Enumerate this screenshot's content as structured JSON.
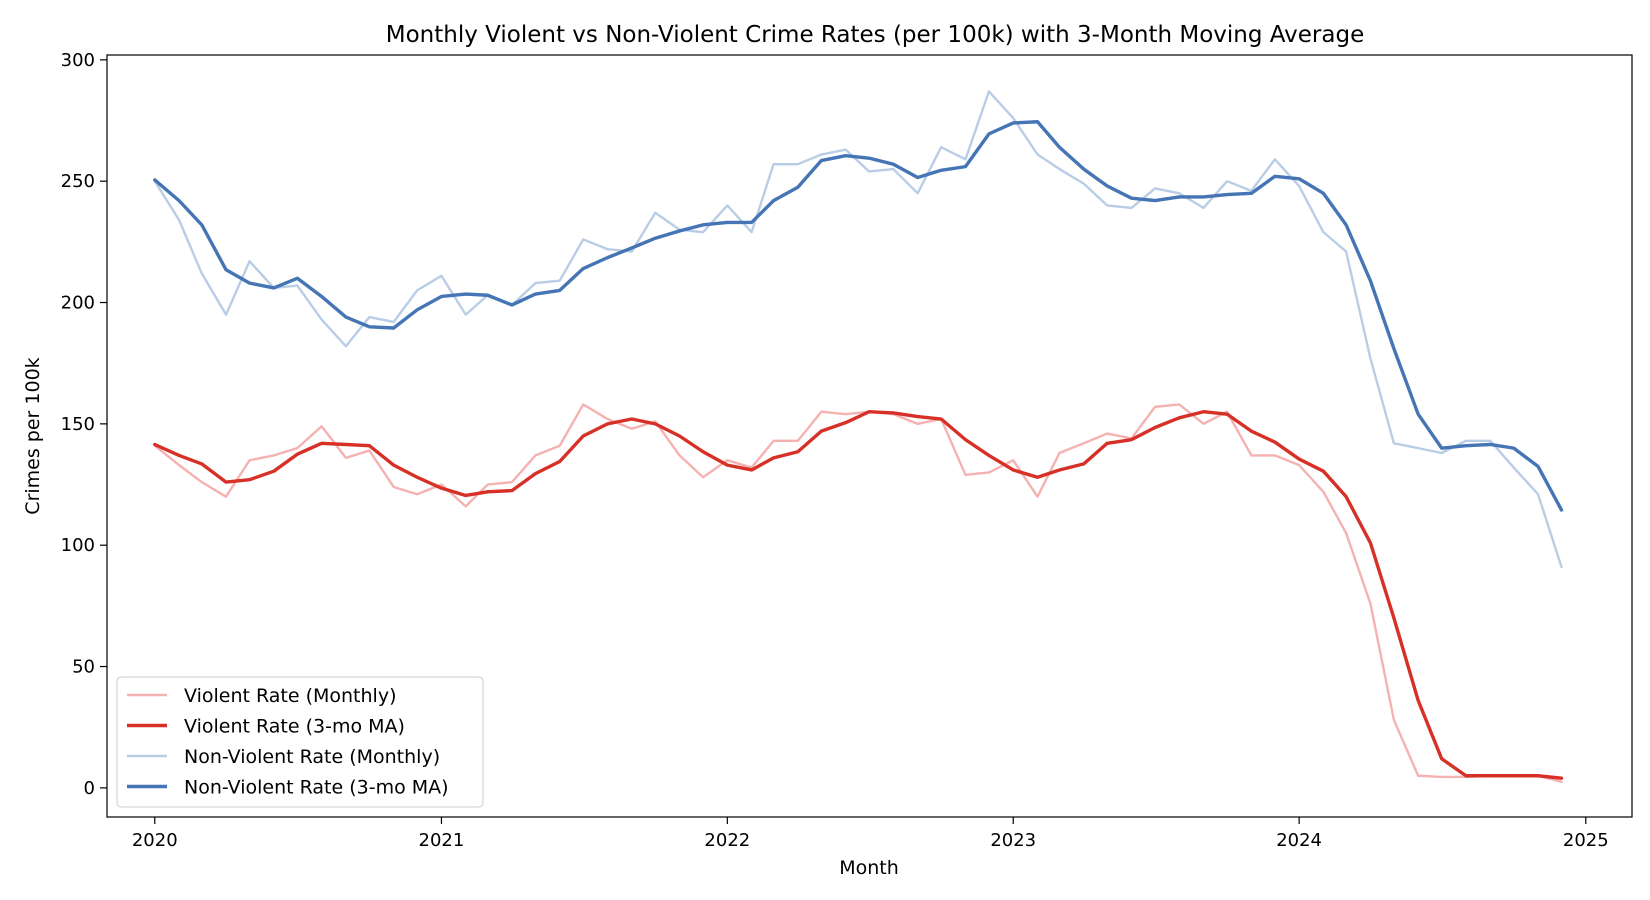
{
  "chart_data": {
    "type": "line",
    "title": "Monthly Violent vs Non-Violent Crime Rates (per 100k) with 3-Month Moving Average",
    "xlabel": "Month",
    "ylabel": "Crimes per 100k",
    "x": [
      "2020-01",
      "2020-02",
      "2020-03",
      "2020-04",
      "2020-05",
      "2020-06",
      "2020-07",
      "2020-08",
      "2020-09",
      "2020-10",
      "2020-11",
      "2020-12",
      "2021-01",
      "2021-02",
      "2021-03",
      "2021-04",
      "2021-05",
      "2021-06",
      "2021-07",
      "2021-08",
      "2021-09",
      "2021-10",
      "2021-11",
      "2021-12",
      "2022-01",
      "2022-02",
      "2022-03",
      "2022-04",
      "2022-05",
      "2022-06",
      "2022-07",
      "2022-08",
      "2022-09",
      "2022-10",
      "2022-11",
      "2022-12",
      "2023-01",
      "2023-02",
      "2023-03",
      "2023-04",
      "2023-05",
      "2023-06",
      "2023-07",
      "2023-08",
      "2023-09",
      "2023-10",
      "2023-11",
      "2023-12",
      "2024-01",
      "2024-02",
      "2024-03",
      "2024-04",
      "2024-05",
      "2024-06",
      "2024-07",
      "2024-08",
      "2024-09",
      "2024-10",
      "2024-11",
      "2024-12"
    ],
    "xlim": [
      "2019-11-01",
      "2025-03-01"
    ],
    "ylim": [
      -12,
      302
    ],
    "x_ticks": [
      "2020",
      "2021",
      "2022",
      "2023",
      "2024",
      "2025"
    ],
    "x_tick_dates": [
      "2020-01-01",
      "2021-01-01",
      "2022-01-01",
      "2023-01-01",
      "2024-01-01",
      "2025-01-01"
    ],
    "y_ticks": [
      0,
      50,
      100,
      150,
      200,
      250,
      300
    ],
    "grid": false,
    "legend_position": "lower-left",
    "series": [
      {
        "name": "Violent Rate (Monthly)",
        "color": "#f4b2b0",
        "width": 2.4,
        "values": [
          141,
          133,
          126,
          120,
          135,
          137,
          140,
          149,
          136,
          139,
          124,
          121,
          125,
          116,
          125,
          126,
          137,
          141,
          158,
          152,
          148,
          151,
          137,
          128,
          135,
          132,
          143,
          143,
          155,
          154,
          155,
          154,
          150,
          152,
          129,
          130,
          135,
          120,
          138,
          142,
          146,
          144,
          157,
          158,
          150,
          155,
          137,
          137,
          133,
          122,
          105,
          76,
          28,
          5,
          4.5,
          4.5,
          5,
          5,
          5,
          2.5
        ]
      },
      {
        "name": "Violent Rate (3-mo MA)",
        "color": "#d73027",
        "width": 3.4,
        "values": [
          141.5,
          137,
          133.5,
          126,
          127,
          130.5,
          137.5,
          142,
          141.5,
          141,
          133,
          128,
          123.5,
          120.5,
          122,
          122.5,
          129.5,
          134.5,
          145,
          150,
          152,
          150,
          145,
          138.5,
          133,
          131,
          136,
          138.5,
          147,
          150.5,
          155,
          154.5,
          153,
          152,
          143.5,
          137,
          131,
          128,
          131,
          133.5,
          142,
          143.5,
          148.5,
          152.5,
          155,
          154,
          147,
          142.5,
          135.5,
          130.5,
          120,
          101,
          70,
          36,
          12,
          5,
          5,
          5,
          5,
          4
        ]
      },
      {
        "name": "Non-Violent Rate (Monthly)",
        "color": "#b9cde6",
        "width": 2.4,
        "values": [
          250,
          234,
          212,
          195,
          217,
          206,
          207,
          193,
          182,
          194,
          192,
          205,
          211,
          195,
          203,
          199,
          208,
          209,
          226,
          222,
          221,
          237,
          230,
          229,
          240,
          229,
          257,
          257,
          261,
          263,
          254,
          255,
          245,
          264,
          259,
          287,
          276,
          261,
          255,
          249,
          240,
          239,
          247,
          245,
          239,
          250,
          246,
          259,
          248,
          229,
          221,
          177,
          142,
          140,
          138,
          143,
          143,
          132,
          121,
          91
        ]
      },
      {
        "name": "Non-Violent Rate (3-mo MA)",
        "color": "#4575b4",
        "width": 3.4,
        "values": [
          250.5,
          242,
          232,
          213.5,
          208,
          206,
          210,
          202.5,
          194,
          190,
          189.5,
          197,
          202.5,
          203.5,
          203,
          199,
          203.5,
          205,
          214,
          218.5,
          222.5,
          226.5,
          229.5,
          232,
          233,
          233,
          242,
          247.5,
          258.5,
          260.5,
          259.5,
          257,
          251.5,
          254.5,
          256,
          269.5,
          274,
          274.5,
          264,
          255,
          248,
          243,
          242,
          243.5,
          243.5,
          244.5,
          245,
          252,
          251,
          245,
          232,
          209,
          181,
          154,
          140,
          141,
          141.5,
          140,
          132.5,
          114.5
        ]
      }
    ]
  }
}
